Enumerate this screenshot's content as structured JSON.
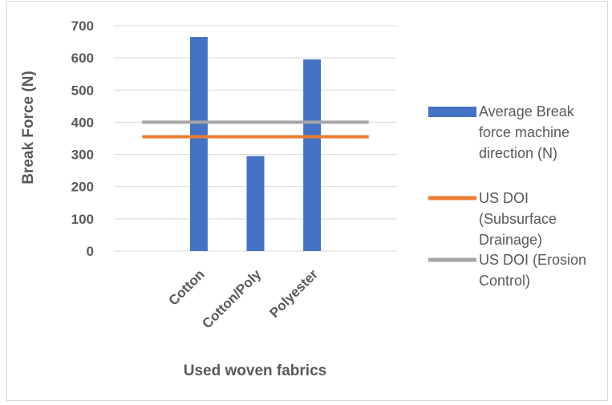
{
  "chart_data": {
    "type": "bar",
    "categories": [
      "Cotton",
      "Cotton/Poly",
      "Polyester"
    ],
    "series": [
      {
        "name": "Average Break force machine direction (N)",
        "kind": "bar",
        "color": "#4472c4",
        "values": [
          665,
          295,
          595
        ]
      },
      {
        "name": "US DOI (Subsurface Drainage)",
        "kind": "line",
        "color": "#ed7d31",
        "values": [
          355,
          355,
          355
        ]
      },
      {
        "name": "US DOI (Erosion Control)",
        "kind": "line",
        "color": "#a5a5a5",
        "values": [
          400,
          400,
          400
        ]
      }
    ],
    "legend_lines": [
      [
        "Average Break",
        "force machine",
        "direction (N)"
      ],
      [
        "US DOI",
        "(Subsurface",
        "Drainage)"
      ],
      [
        "US DOI (Erosion",
        "Control)"
      ]
    ],
    "xlabel": "Used woven fabrics",
    "ylabel": "Break Force (N)",
    "ylim": [
      0,
      700
    ],
    "yticks": [
      0,
      100,
      200,
      300,
      400,
      500,
      600,
      700
    ],
    "grid": true,
    "legend_position": "right",
    "gridline_color": "#d9d9d9"
  }
}
